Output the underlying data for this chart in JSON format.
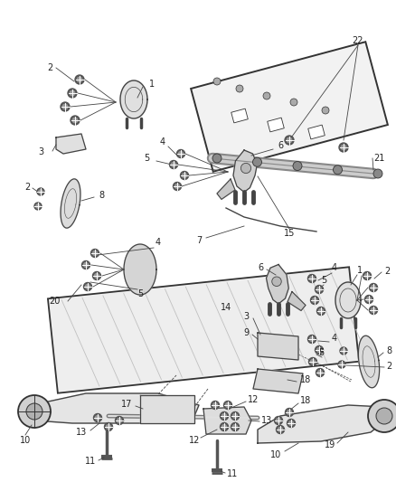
{
  "bg": "#ffffff",
  "lc": "#444444",
  "fc": "#e8e8e8",
  "tc": "#222222",
  "figsize": [
    4.38,
    5.33
  ],
  "dpi": 100
}
